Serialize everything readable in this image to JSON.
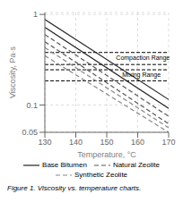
{
  "chart_data": {
    "type": "line",
    "title": "Figure 1. Viscosity vs. temperature charts.",
    "x_label": "Temperature, °C",
    "y_label": "Viscosity, Pa·s",
    "log": "y",
    "grid": true,
    "xlim": [
      130,
      170
    ],
    "ylim": [
      0.05,
      1.05
    ],
    "xticks": [
      130,
      140,
      150,
      160,
      170
    ],
    "yticks": [
      0.05,
      0.1,
      1
    ],
    "compaction_range": [
      0.28,
      0.38
    ],
    "mixing_range": [
      0.185,
      0.245
    ],
    "series": [
      {
        "name": "Base Bitumen",
        "color": "#222222",
        "line_style": "solid",
        "x": [
          130,
          170
        ],
        "values": [
          0.88,
          0.115
        ]
      },
      {
        "name": "Base Bitumen",
        "color": "#222222",
        "line_style": "solid",
        "x": [
          130,
          170
        ],
        "values": [
          0.72,
          0.092
        ]
      },
      {
        "name": "Natural Zeolite",
        "color": "#555555",
        "line_style": "dashed",
        "x": [
          130,
          170
        ],
        "values": [
          0.6,
          0.075
        ]
      },
      {
        "name": "Natural Zeolite",
        "color": "#555555",
        "line_style": "dashed",
        "x": [
          130,
          170
        ],
        "values": [
          0.5,
          0.062
        ]
      },
      {
        "name": "Synthetic Zeolite",
        "color": "#888888",
        "line_style": "dashed",
        "x": [
          130,
          170
        ],
        "values": [
          0.43,
          0.056
        ]
      },
      {
        "name": "Synthetic Zeolite",
        "color": "#888888",
        "line_style": "dashed",
        "x": [
          130,
          170
        ],
        "values": [
          0.35,
          0.05
        ]
      }
    ],
    "annotations": [
      {
        "text": "Compaction Range",
        "x": 153,
        "y": 0.335
      },
      {
        "text": "Mixing Range",
        "x": 155,
        "y": 0.215
      }
    ]
  }
}
